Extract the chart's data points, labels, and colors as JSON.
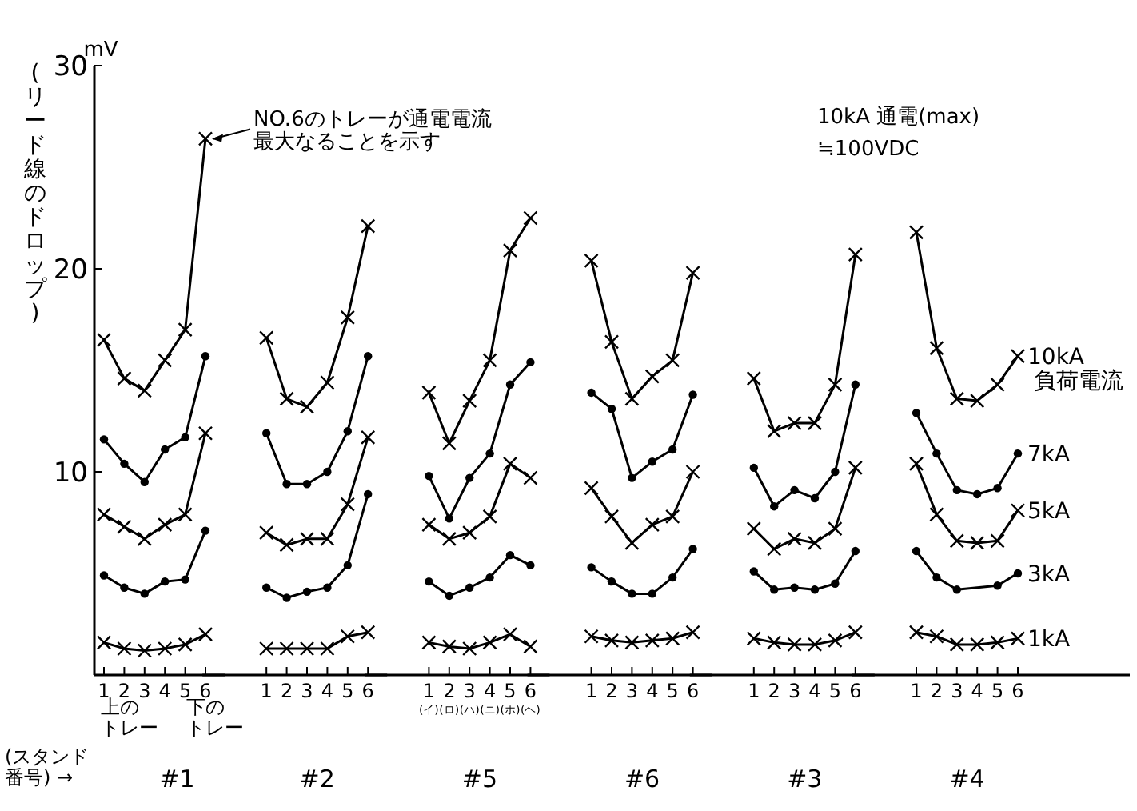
{
  "chart_data": [
    {
      "type": "line",
      "ylabel": "(リード線のドロップ)",
      "xlabel": "#1",
      "categories": [
        "1",
        "2",
        "3",
        "4",
        "5",
        "6"
      ],
      "ylim": [
        0,
        30
      ],
      "yticks": [
        10,
        20,
        30
      ],
      "annotations": [
        "mV",
        {
          "text": "NO.6のトレーが通電電流最大なることを示す",
          "x": "6",
          "y": 26.4
        },
        "上のトレー",
        "下のトレー",
        "(スタンド番号) →"
      ],
      "series": [
        {
          "color": "#000000",
          "marker": "cross",
          "values": [
            1.6,
            1.3,
            1.2,
            1.3,
            1.5,
            2.0
          ]
        },
        {
          "color": "#000000",
          "marker": "circle",
          "values": [
            4.9,
            4.3,
            4.0,
            4.6,
            4.7,
            7.1
          ]
        },
        {
          "color": "#000000",
          "marker": "cross",
          "values": [
            7.9,
            7.3,
            6.7,
            7.4,
            7.9,
            11.9
          ]
        },
        {
          "color": "#000000",
          "marker": "circle",
          "values": [
            11.6,
            10.4,
            9.5,
            11.1,
            11.7,
            15.7
          ]
        },
        {
          "color": "#000000",
          "marker": "cross",
          "values": [
            16.5,
            14.6,
            14.0,
            15.5,
            17.0,
            26.4
          ]
        }
      ]
    },
    {
      "type": "line",
      "xlabel": "#2",
      "categories": [
        "1",
        "2",
        "3",
        "4",
        "5",
        "6"
      ],
      "ylim": [
        0,
        30
      ],
      "tick_labels": "x",
      "series": [
        {
          "color": "#000000",
          "marker": "cross",
          "values": [
            1.3,
            1.3,
            1.3,
            1.3,
            1.9,
            2.1
          ]
        },
        {
          "color": "#000000",
          "marker": "circle",
          "values": [
            4.3,
            3.8,
            4.1,
            4.3,
            5.4,
            8.9
          ]
        },
        {
          "color": "#000000",
          "marker": "cross",
          "values": [
            7.0,
            6.4,
            6.7,
            6.7,
            8.4,
            11.7
          ]
        },
        {
          "color": "#000000",
          "marker": "circle",
          "values": [
            11.9,
            9.4,
            9.4,
            10.0,
            12.0,
            15.7
          ]
        },
        {
          "color": "#000000",
          "marker": "cross",
          "values": [
            16.6,
            13.6,
            13.2,
            14.4,
            17.6,
            22.1
          ]
        }
      ]
    },
    {
      "type": "line",
      "xlabel": "#5",
      "categories": [
        "1",
        "2",
        "3",
        "4",
        "5",
        "6"
      ],
      "ylim": [
        0,
        30
      ],
      "tick_labels": "x",
      "annotations": [
        "(イ)",
        "(ロ)",
        "(ハ)",
        "(ニ)",
        "(ホ)",
        "(ヘ)"
      ],
      "series": [
        {
          "color": "#000000",
          "marker": "cross",
          "values": [
            1.6,
            1.4,
            1.3,
            1.6,
            2.0,
            1.4
          ]
        },
        {
          "color": "#000000",
          "marker": "circle",
          "values": [
            4.6,
            3.9,
            4.3,
            4.8,
            5.9,
            5.4
          ]
        },
        {
          "color": "#000000",
          "marker": "cross",
          "values": [
            7.4,
            6.7,
            7.0,
            7.8,
            10.4,
            9.7
          ]
        },
        {
          "color": "#000000",
          "marker": "circle",
          "values": [
            9.8,
            7.7,
            9.7,
            10.9,
            14.3,
            15.4
          ]
        },
        {
          "color": "#000000",
          "marker": "cross",
          "values": [
            13.9,
            11.4,
            13.5,
            15.5,
            20.9,
            22.5
          ]
        }
      ]
    },
    {
      "type": "line",
      "xlabel": "#6",
      "categories": [
        "1",
        "2",
        "3",
        "4",
        "5",
        "6"
      ],
      "ylim": [
        0,
        30
      ],
      "tick_labels": "x",
      "series": [
        {
          "color": "#000000",
          "marker": "cross",
          "values": [
            1.9,
            1.7,
            1.6,
            1.7,
            1.8,
            2.1
          ]
        },
        {
          "color": "#000000",
          "marker": "circle",
          "values": [
            5.3,
            4.6,
            4.0,
            4.0,
            4.8,
            6.2
          ]
        },
        {
          "color": "#000000",
          "marker": "cross",
          "values": [
            9.2,
            7.8,
            6.5,
            7.4,
            7.8,
            10.0
          ]
        },
        {
          "color": "#000000",
          "marker": "circle",
          "values": [
            13.9,
            13.1,
            9.7,
            10.5,
            11.1,
            13.8
          ]
        },
        {
          "color": "#000000",
          "marker": "cross",
          "values": [
            20.4,
            16.4,
            13.6,
            14.7,
            15.5,
            19.8
          ]
        }
      ]
    },
    {
      "type": "line",
      "xlabel": "#3",
      "categories": [
        "1",
        "2",
        "3",
        "4",
        "5",
        "6"
      ],
      "ylim": [
        0,
        30
      ],
      "tick_labels": "x",
      "series": [
        {
          "color": "#000000",
          "marker": "cross",
          "values": [
            1.8,
            1.6,
            1.5,
            1.5,
            1.7,
            2.1
          ]
        },
        {
          "color": "#000000",
          "marker": "circle",
          "values": [
            5.1,
            4.2,
            4.3,
            4.2,
            4.5,
            6.1
          ]
        },
        {
          "color": "#000000",
          "marker": "cross",
          "values": [
            7.2,
            6.2,
            6.7,
            6.5,
            7.2,
            10.2
          ]
        },
        {
          "color": "#000000",
          "marker": "circle",
          "values": [
            10.2,
            8.3,
            9.1,
            8.7,
            10.0,
            14.3
          ]
        },
        {
          "color": "#000000",
          "marker": "cross",
          "values": [
            14.6,
            12.0,
            12.4,
            12.4,
            14.3,
            20.7
          ]
        }
      ]
    },
    {
      "type": "line",
      "xlabel": "#4",
      "categories": [
        "1",
        "2",
        "3",
        "4",
        "5",
        "6"
      ],
      "ylim": [
        0,
        30
      ],
      "tick_labels": "x",
      "annotations": [
        "10kA 通電(max)≒100VDC",
        "負荷電流"
      ],
      "series": [
        {
          "name": "1kA",
          "color": "#000000",
          "marker": "cross",
          "values": [
            2.1,
            1.9,
            1.5,
            1.5,
            1.6,
            1.8
          ]
        },
        {
          "name": "3kA",
          "color": "#000000",
          "marker": "circle",
          "values": [
            6.1,
            4.8,
            4.2,
            null,
            4.4,
            5.0
          ]
        },
        {
          "name": "5kA",
          "color": "#000000",
          "marker": "cross",
          "values": [
            10.4,
            7.9,
            6.6,
            6.5,
            6.6,
            8.1
          ]
        },
        {
          "name": "7kA",
          "color": "#000000",
          "marker": "circle",
          "values": [
            12.9,
            10.9,
            9.1,
            8.9,
            9.2,
            10.9
          ]
        },
        {
          "name": "10kA",
          "color": "#000000",
          "marker": "cross",
          "values": [
            21.8,
            16.1,
            13.6,
            13.5,
            14.3,
            15.7
          ]
        }
      ]
    }
  ]
}
